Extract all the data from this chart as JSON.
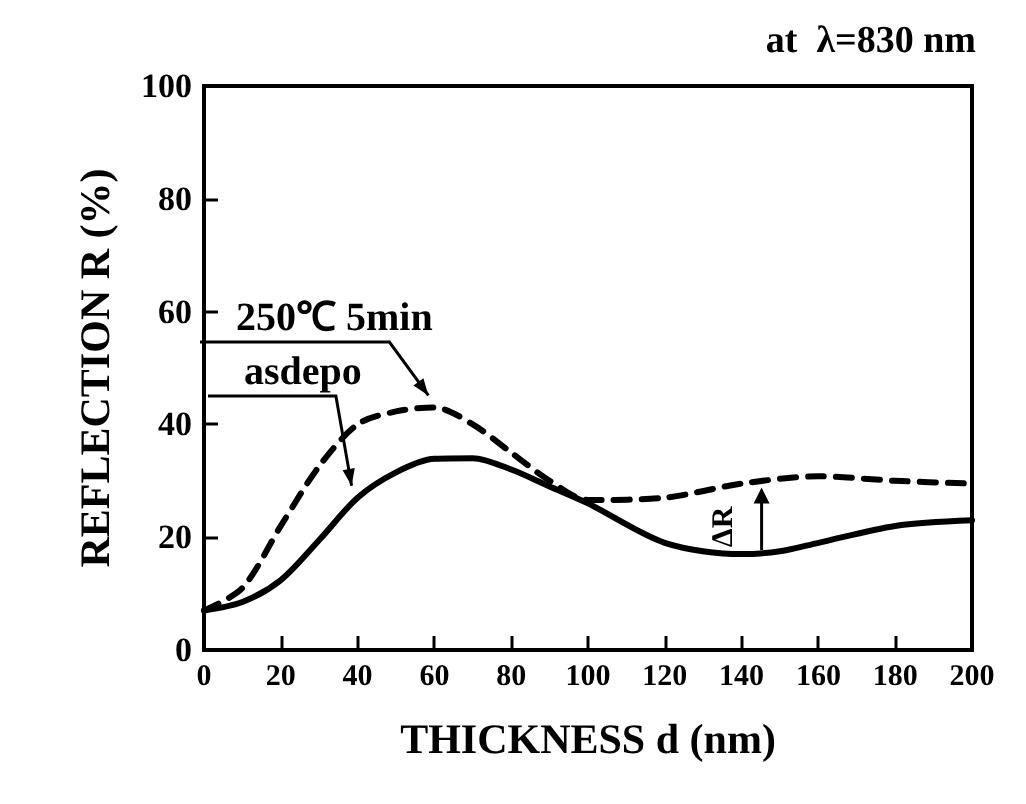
{
  "chart_data": {
    "type": "line",
    "title": "at  λ=830 nm",
    "xlabel": "THICKNESS d (nm)",
    "ylabel": "REFLECTION R (%)",
    "xlim": [
      0,
      200
    ],
    "xticks": [
      0,
      20,
      40,
      60,
      80,
      100,
      120,
      140,
      160,
      180,
      200
    ],
    "ylim": [
      0,
      100
    ],
    "yticks": [
      0,
      20,
      40,
      60,
      80,
      100
    ],
    "grid": false,
    "legend": "bottom left",
    "marker": "none",
    "annotations": [
      "ΔR"
    ],
    "series": [
      {
        "name": "250℃ 5min",
        "color": "#000000",
        "line_style": "dashed",
        "x": [
          0,
          10,
          20,
          30,
          40,
          50,
          60,
          70,
          80,
          90,
          100,
          120,
          140,
          160,
          180,
          200
        ],
        "values": [
          7,
          11,
          22,
          32.6,
          40,
          42.3,
          43,
          40,
          35,
          30,
          26.6,
          27,
          29.5,
          30.8,
          30,
          29.5
        ]
      },
      {
        "name": "asdepo",
        "color": "#000000",
        "line_style": "solid",
        "x": [
          0,
          10,
          20,
          30,
          40,
          50,
          60,
          70,
          80,
          90,
          100,
          120,
          140,
          150,
          160,
          180,
          200
        ],
        "values": [
          7,
          8.5,
          12.4,
          19.5,
          27,
          31.5,
          33.9,
          34,
          32,
          29,
          26,
          19,
          17,
          17.5,
          19,
          22,
          23
        ]
      }
    ]
  }
}
